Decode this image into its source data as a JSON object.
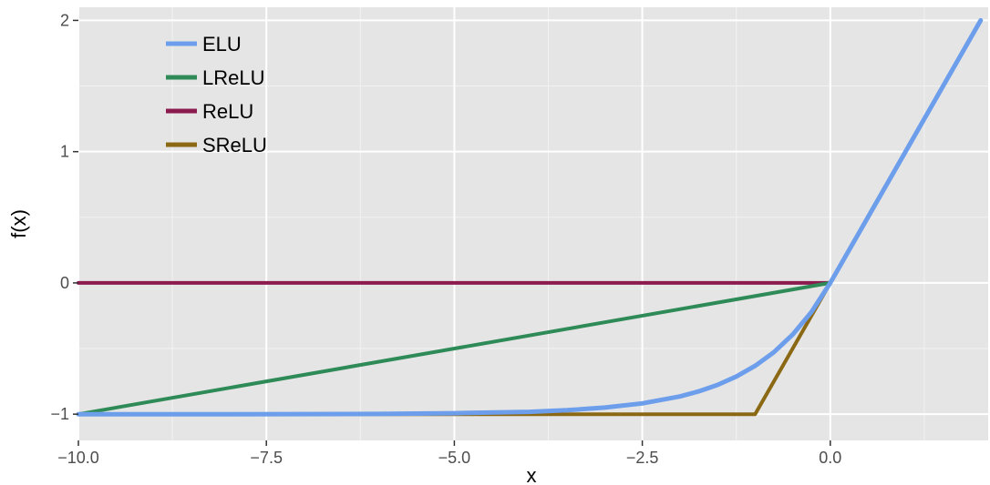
{
  "chart_data": {
    "type": "line",
    "title": "",
    "xlabel": "x",
    "ylabel": "f(x)",
    "xlim": [
      -10.0,
      2.1
    ],
    "ylim": [
      -1.2,
      2.1
    ],
    "x_ticks": [
      -10.0,
      -7.5,
      -5.0,
      -2.5,
      0.0
    ],
    "x_tick_labels": [
      "−10.0",
      "−7.5",
      "−5.0",
      "−2.5",
      "0.0"
    ],
    "y_ticks": [
      -1,
      0,
      1,
      2
    ],
    "y_tick_labels": [
      "−1",
      "0",
      "1",
      "2"
    ],
    "grid": true,
    "legend_position": "top-left",
    "series": [
      {
        "name": "ELU",
        "color": "#6d9eeb",
        "x": [
          -10,
          -8,
          -6,
          -5,
          -4,
          -3.5,
          -3,
          -2.5,
          -2,
          -1.75,
          -1.5,
          -1.25,
          -1,
          -0.75,
          -0.5,
          -0.25,
          0,
          1,
          2
        ],
        "y": [
          -1.0,
          -1.0,
          -0.998,
          -0.993,
          -0.982,
          -0.97,
          -0.95,
          -0.918,
          -0.865,
          -0.826,
          -0.777,
          -0.713,
          -0.632,
          -0.528,
          -0.393,
          -0.221,
          0,
          1,
          2
        ]
      },
      {
        "name": "LReLU",
        "color": "#2e8b57",
        "x": [
          -10,
          0,
          2
        ],
        "y": [
          -1,
          0,
          2
        ]
      },
      {
        "name": "ReLU",
        "color": "#8b1a4e",
        "x": [
          -10,
          0,
          2
        ],
        "y": [
          0,
          0,
          2
        ]
      },
      {
        "name": "SReLU",
        "color": "#8b6914",
        "x": [
          -10,
          -1,
          0,
          2
        ],
        "y": [
          -1,
          -1,
          0,
          2
        ]
      }
    ]
  }
}
